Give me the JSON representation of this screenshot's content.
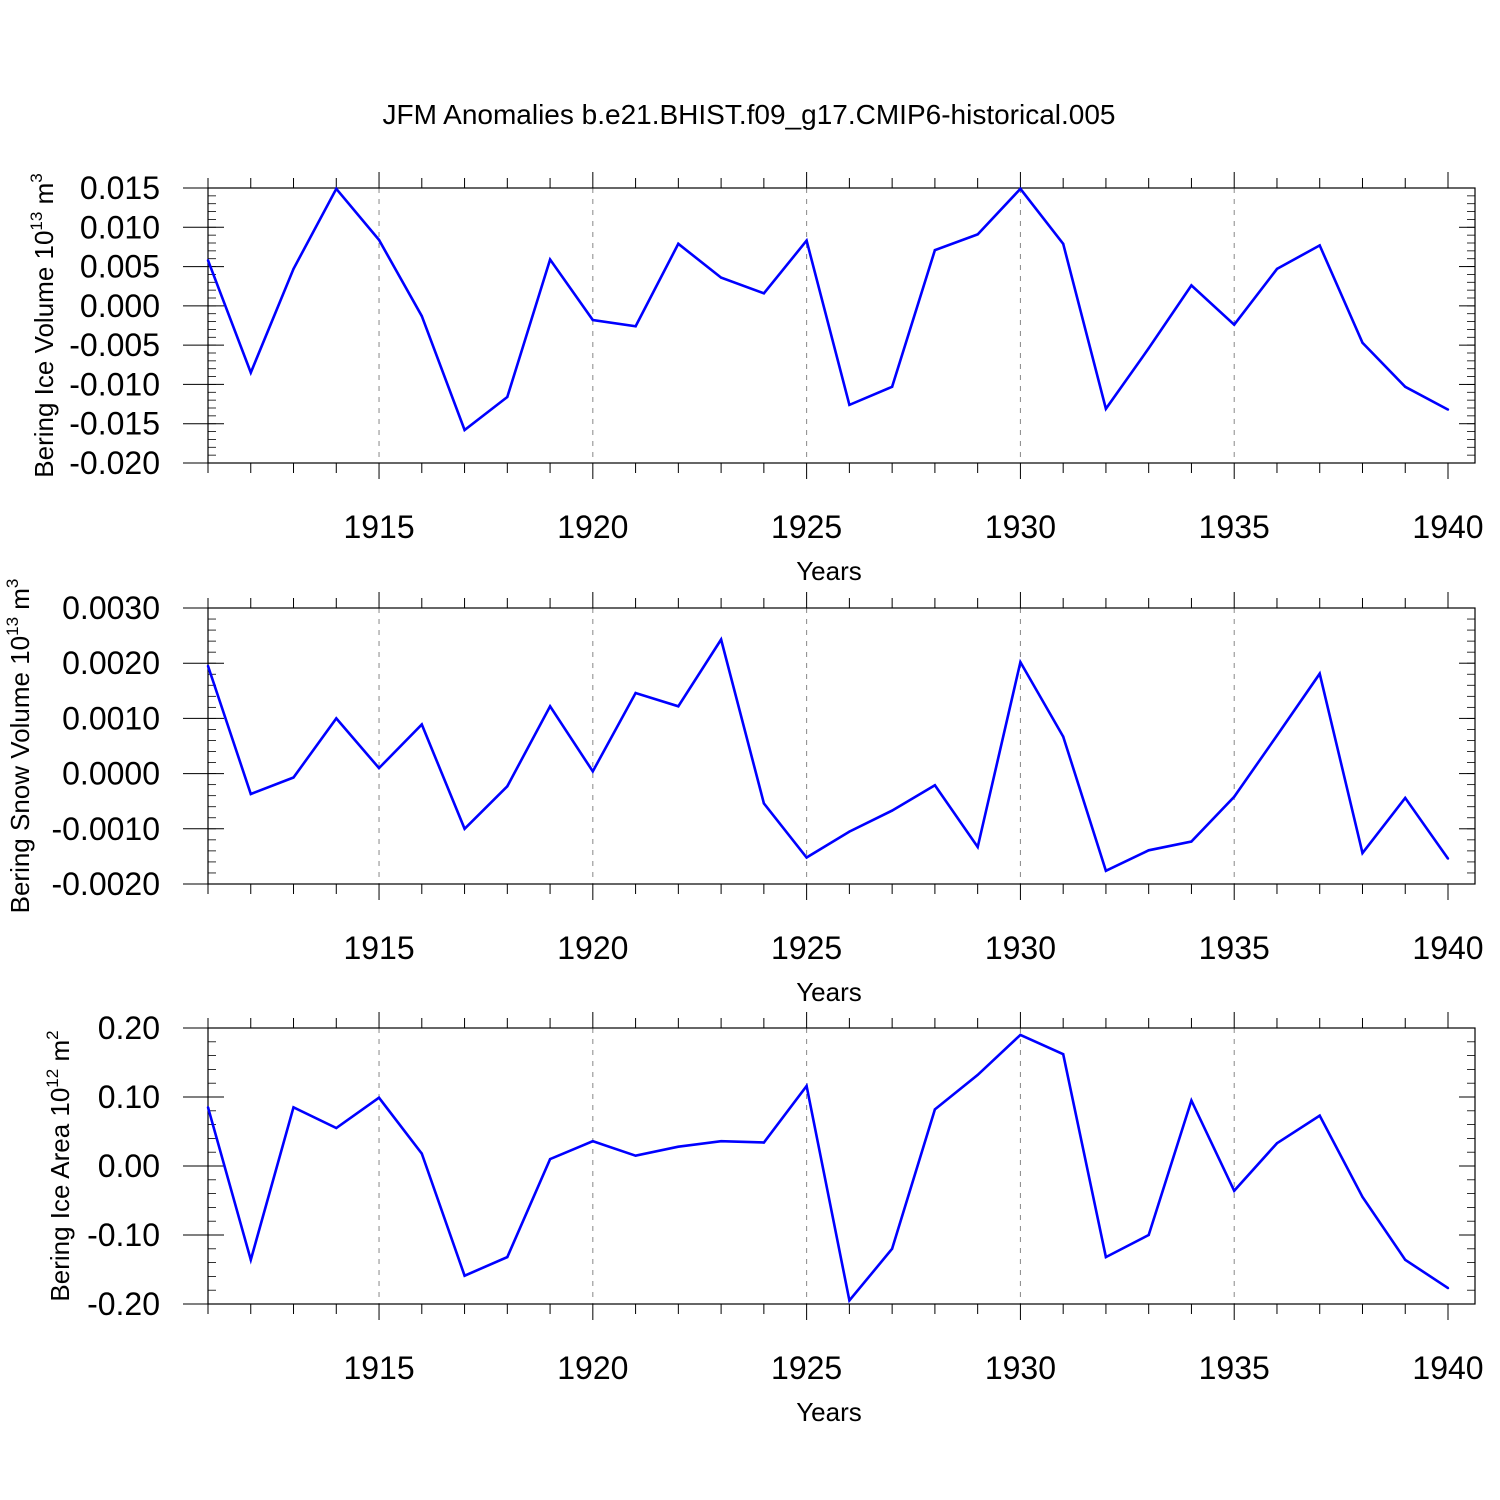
{
  "figure": {
    "title": "JFM Anomalies b.e21.BHIST.f09_g17.CMIP6-historical.005",
    "line_color": "#0000ff",
    "grid_color": "#888888"
  },
  "chart_data": [
    {
      "type": "line",
      "xlabel": "Years",
      "ylabel_main": "Bering Ice Volume 10",
      "ylabel_exp": "13",
      "ylabel_unit": " m",
      "ylabel_unit_exp": "3",
      "xlim": [
        1911,
        1940
      ],
      "ylim": [
        -0.02,
        0.015
      ],
      "xticks": [
        1915,
        1920,
        1925,
        1930,
        1935,
        1940
      ],
      "xtick_labels": [
        "1915",
        "1920",
        "1925",
        "1930",
        "1935",
        "1940"
      ],
      "yticks": [
        0.015,
        0.01,
        0.005,
        0.0,
        -0.005,
        -0.01,
        -0.015,
        -0.02
      ],
      "ytick_labels": [
        "0.015",
        "0.010",
        "0.005",
        "0.000",
        "-0.005",
        "-0.010",
        "-0.015",
        "-0.020"
      ],
      "x": [
        1911,
        1912,
        1913,
        1914,
        1915,
        1916,
        1917,
        1918,
        1919,
        1920,
        1921,
        1922,
        1923,
        1924,
        1925,
        1926,
        1927,
        1928,
        1929,
        1930,
        1931,
        1932,
        1933,
        1934,
        1935,
        1936,
        1937,
        1938,
        1939,
        1940
      ],
      "values": [
        0.0058,
        -0.0085,
        0.0047,
        0.0149,
        0.0084,
        -0.0013,
        -0.0158,
        -0.0116,
        0.0059,
        -0.0018,
        -0.0026,
        0.0079,
        0.0036,
        0.0016,
        0.0083,
        -0.0126,
        -0.0103,
        0.0071,
        0.0091,
        0.0149,
        0.0079,
        -0.0131,
        -0.0054,
        0.0026,
        -0.0024,
        0.0047,
        0.0077,
        -0.0047,
        -0.0103,
        -0.0132
      ]
    },
    {
      "type": "line",
      "xlabel": "Years",
      "ylabel_main": "Bering Snow Volume 10",
      "ylabel_exp": "13",
      "ylabel_unit": " m",
      "ylabel_unit_exp": "3",
      "xlim": [
        1911,
        1940
      ],
      "ylim": [
        -0.002,
        0.003
      ],
      "xticks": [
        1915,
        1920,
        1925,
        1930,
        1935,
        1940
      ],
      "xtick_labels": [
        "1915",
        "1920",
        "1925",
        "1930",
        "1935",
        "1940"
      ],
      "yticks": [
        0.003,
        0.002,
        0.001,
        0.0,
        -0.001,
        -0.002
      ],
      "ytick_labels": [
        "0.0030",
        "0.0020",
        "0.0010",
        "0.0000",
        "-0.0010",
        "-0.0020"
      ],
      "x": [
        1911,
        1912,
        1913,
        1914,
        1915,
        1916,
        1917,
        1918,
        1919,
        1920,
        1921,
        1922,
        1923,
        1924,
        1925,
        1926,
        1927,
        1928,
        1929,
        1930,
        1931,
        1932,
        1933,
        1934,
        1935,
        1936,
        1937,
        1938,
        1939,
        1940
      ],
      "values": [
        0.00195,
        -0.00037,
        -7e-05,
        0.001,
        0.0001,
        0.00089,
        -0.001,
        -0.00023,
        0.00122,
        4e-05,
        0.00146,
        0.00122,
        0.00243,
        -0.00054,
        -0.00152,
        -0.00105,
        -0.00067,
        -0.00021,
        -0.00133,
        0.00202,
        0.00067,
        -0.00176,
        -0.00139,
        -0.00123,
        -0.00042,
        0.00069,
        0.00181,
        -0.00144,
        -0.00044,
        -0.00154
      ]
    },
    {
      "type": "line",
      "xlabel": "Years",
      "ylabel_main": "Bering Ice Area 10",
      "ylabel_exp": "12",
      "ylabel_unit": " m",
      "ylabel_unit_exp": "2",
      "xlim": [
        1911,
        1940
      ],
      "ylim": [
        -0.2,
        0.2
      ],
      "xticks": [
        1915,
        1920,
        1925,
        1930,
        1935,
        1940
      ],
      "xtick_labels": [
        "1915",
        "1920",
        "1925",
        "1930",
        "1935",
        "1940"
      ],
      "yticks": [
        0.2,
        0.1,
        0.0,
        -0.1,
        -0.2
      ],
      "ytick_labels": [
        "0.20",
        "0.10",
        "0.00",
        "-0.10",
        "-0.20"
      ],
      "x": [
        1911,
        1912,
        1913,
        1914,
        1915,
        1916,
        1917,
        1918,
        1919,
        1920,
        1921,
        1922,
        1923,
        1924,
        1925,
        1926,
        1927,
        1928,
        1929,
        1930,
        1931,
        1932,
        1933,
        1934,
        1935,
        1936,
        1937,
        1938,
        1939,
        1940
      ],
      "values": [
        0.085,
        -0.136,
        0.085,
        0.055,
        0.099,
        0.018,
        -0.159,
        -0.132,
        0.01,
        0.036,
        0.015,
        0.028,
        0.036,
        0.034,
        0.116,
        -0.195,
        -0.12,
        0.082,
        0.132,
        0.19,
        0.162,
        -0.132,
        -0.1,
        0.095,
        -0.036,
        0.033,
        0.073,
        -0.045,
        -0.136,
        -0.177
      ]
    }
  ]
}
